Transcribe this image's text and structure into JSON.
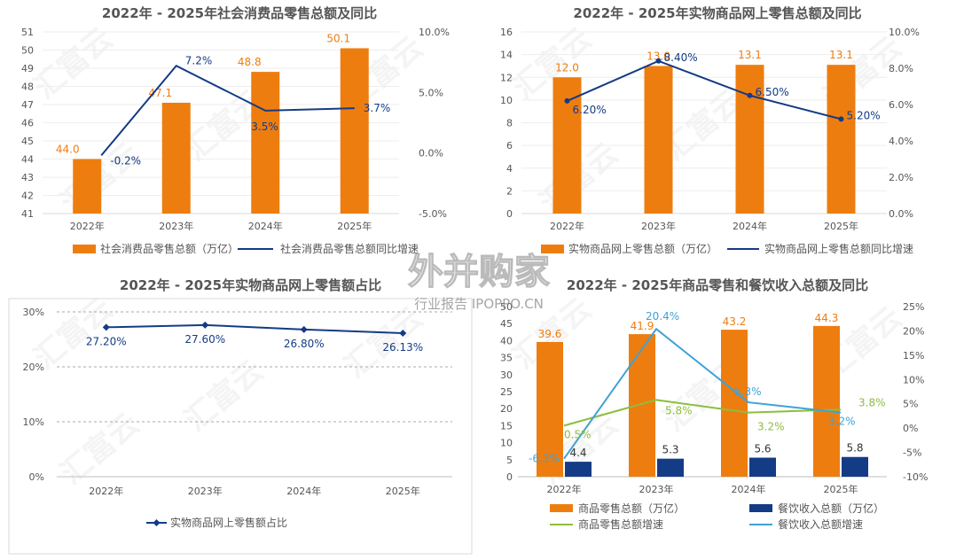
{
  "chart_data": [
    {
      "type": "bar",
      "title": "2022年 - 2025年社会消费品零售总额及同比",
      "categories": [
        "2022年",
        "2023年",
        "2024年",
        "2025年"
      ],
      "series": [
        {
          "name": "社会消费品零售总额（万亿）",
          "kind": "bar",
          "axis": "left",
          "values": [
            44.0,
            47.1,
            48.8,
            50.1
          ],
          "labels": [
            "44.0",
            "47.1",
            "48.8",
            "50.1"
          ]
        },
        {
          "name": "社会消费品零售总额同比增速",
          "kind": "line",
          "axis": "right",
          "values": [
            -0.2,
            7.2,
            3.5,
            3.7
          ],
          "labels": [
            "-0.2%",
            "7.2%",
            "3.5%",
            "3.7%"
          ]
        }
      ],
      "ylim": [
        41,
        51
      ],
      "yticks": [
        "41",
        "42",
        "43",
        "44",
        "45",
        "46",
        "47",
        "48",
        "49",
        "50",
        "51"
      ],
      "y2lim": [
        -5,
        10
      ],
      "y2ticks": [
        "-5.0%",
        "0.0%",
        "5.0%",
        "10.0%"
      ],
      "legend": "bottom"
    },
    {
      "type": "bar",
      "title": "2022年 - 2025年实物商品网上零售总额及同比",
      "categories": [
        "2022年",
        "2023年",
        "2024年",
        "2025年"
      ],
      "series": [
        {
          "name": "实物商品网上零售总额（万亿）",
          "kind": "bar",
          "axis": "left",
          "values": [
            12.0,
            13.0,
            13.1,
            13.1
          ],
          "labels": [
            "12.0",
            "13.0",
            "13.1",
            "13.1"
          ]
        },
        {
          "name": "实物商品网上零售总额同比增速",
          "kind": "line",
          "axis": "right",
          "values": [
            6.2,
            8.4,
            6.5,
            5.2
          ],
          "labels": [
            "6.20%",
            "8.40%",
            "6.50%",
            "5.20%"
          ]
        }
      ],
      "ylim": [
        0,
        16
      ],
      "yticks": [
        "0",
        "2",
        "4",
        "6",
        "8",
        "10",
        "12",
        "14",
        "16"
      ],
      "y2lim": [
        0,
        10
      ],
      "y2ticks": [
        "0.0%",
        "2.0%",
        "4.0%",
        "6.0%",
        "8.0%",
        "10.0%"
      ],
      "legend": "bottom"
    },
    {
      "type": "line",
      "title": "2022年 - 2025年实物商品网上零售额占比",
      "categories": [
        "2022年",
        "2023年",
        "2024年",
        "2025年"
      ],
      "series": [
        {
          "name": "实物商品网上零售额占比",
          "values": [
            27.2,
            27.6,
            26.8,
            26.13
          ],
          "labels": [
            "27.20%",
            "27.60%",
            "26.80%",
            "26.13%"
          ]
        }
      ],
      "ylim": [
        0,
        30
      ],
      "yticks": [
        "0%",
        "10%",
        "20%",
        "30%"
      ],
      "grid": true,
      "legend": "bottom"
    },
    {
      "type": "bar",
      "title": "2022年 - 2025年商品零售和餐饮收入总额及同比",
      "categories": [
        "2022年",
        "2023年",
        "2024年",
        "2025年"
      ],
      "series": [
        {
          "name": "商品零售总额（万亿）",
          "kind": "bar",
          "axis": "left",
          "values": [
            39.6,
            41.9,
            43.2,
            44.3
          ],
          "labels": [
            "39.6",
            "41.9",
            "43.2",
            "44.3"
          ]
        },
        {
          "name": "餐饮收入总额（万亿）",
          "kind": "bar",
          "axis": "left",
          "values": [
            4.4,
            5.3,
            5.6,
            5.8
          ],
          "labels": [
            "4.4",
            "5.3",
            "5.6",
            "5.8"
          ]
        },
        {
          "name": "商品零售总额增速",
          "kind": "line",
          "axis": "right",
          "values": [
            0.5,
            5.8,
            3.2,
            3.8
          ],
          "labels": [
            "0.5%",
            "5.8%",
            "3.2%",
            "3.8%"
          ]
        },
        {
          "name": "餐饮收入总额增速",
          "kind": "line",
          "axis": "right",
          "values": [
            -6.3,
            20.4,
            5.3,
            3.2
          ],
          "labels": [
            "-6.3%",
            "20.4%",
            "5.3%",
            "3.2%"
          ]
        }
      ],
      "ylim": [
        0,
        50
      ],
      "yticks": [
        "0",
        "5",
        "10",
        "15",
        "20",
        "25",
        "30",
        "35",
        "40",
        "45",
        "50"
      ],
      "y2lim": [
        -10,
        25
      ],
      "y2ticks": [
        "-10%",
        "-5%",
        "0%",
        "5%",
        "10%",
        "15%",
        "20%",
        "25%"
      ],
      "legend": "bottom"
    }
  ],
  "colors": {
    "orange": "#EE7D0F",
    "navy": "#143B86",
    "green": "#8DBE3C",
    "lightblue": "#3FA2D6",
    "axis": "#555555",
    "grid": "#bfbfbf"
  },
  "watermark": {
    "logo": "外并购家",
    "caption": "行业报告 IPOPPO.CN",
    "tiles": "汇富云"
  }
}
